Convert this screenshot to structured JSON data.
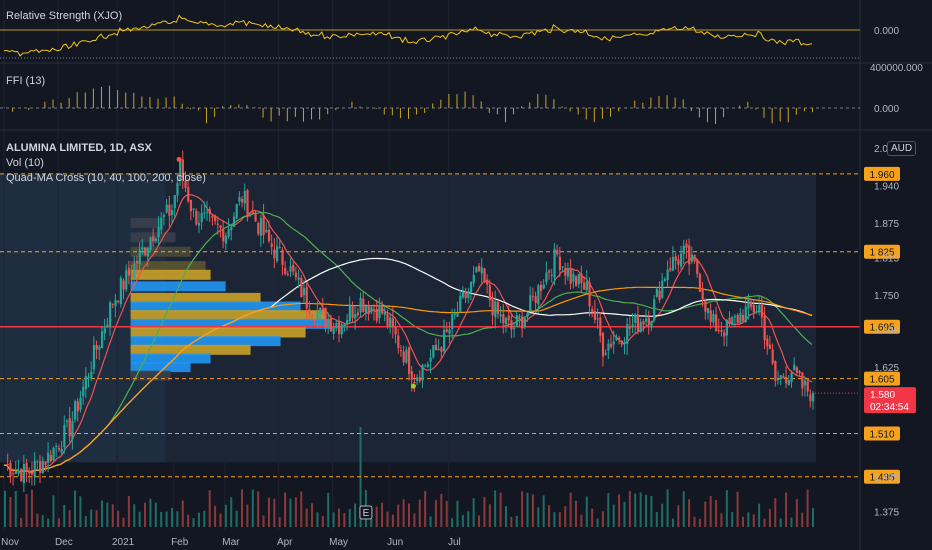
{
  "panes": {
    "rs": {
      "label": "Relative Strength (XJO)",
      "tick": "0.000"
    },
    "ffi": {
      "label": "FFI (13)",
      "ticks": [
        "400000.000",
        "0.000"
      ]
    },
    "main": {
      "title": "ALUMINA LIMITED, 1D, ASX",
      "vol_label": "Vol (10)",
      "ma_label": "Quad-MA Cross (10, 40, 100, 200, close)",
      "currency": "AUD"
    }
  },
  "chart_data": {
    "type": "candlestick",
    "symbol": "ALUMINA LIMITED",
    "interval": "1D",
    "exchange": "ASX",
    "y_ticks": [
      "2.005",
      "1.940",
      "1.875",
      "1.815",
      "1.750",
      "1.690",
      "1.625",
      "1.435",
      "1.375"
    ],
    "ylim": [
      1.36,
      2.01
    ],
    "x_ticks": [
      "Nov",
      "Dec",
      "2021",
      "Feb",
      "Mar",
      "Apr",
      "May",
      "Jun",
      "Jul"
    ],
    "price_levels": [
      {
        "value": 1.96,
        "label": "1.960",
        "color": "#f7a21b",
        "style": "dashed"
      },
      {
        "value": 1.825,
        "label": "1.825",
        "color": "#f7a21b",
        "style": "dashed"
      },
      {
        "value": 1.695,
        "label": "1.695",
        "color": "#f23645",
        "style": "solid",
        "tag_color": "#f7a21b"
      },
      {
        "value": 1.605,
        "label": "1.605",
        "color": "#f7a21b",
        "style": "dashed"
      },
      {
        "value": 1.51,
        "label": "1.510",
        "color": "#f7a21b",
        "style": "dashed"
      },
      {
        "value": 1.435,
        "label": "1.435",
        "color": "#f7a21b",
        "style": "dashed"
      }
    ],
    "last_price": {
      "value": 1.58,
      "label": "1.580",
      "countdown": "02:34:54",
      "color": "#f23645"
    },
    "earnings_marker": "E",
    "colors": {
      "up": "#26a69a",
      "down": "#ef5350",
      "ma10": "#ef5350",
      "ma40": "#4caf50",
      "ma100": "#ffffff",
      "ma200": "#ff9800",
      "rs": "#f0c419",
      "ffi": "#c9a227"
    }
  }
}
